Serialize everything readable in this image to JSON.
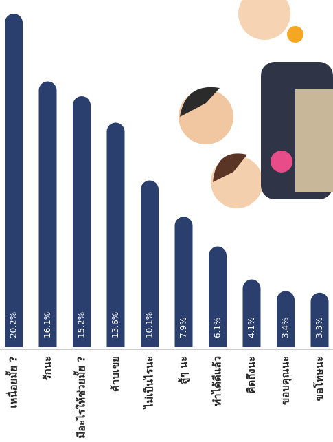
{
  "chart_data": {
    "type": "bar",
    "categories": [
      "เหนื่อยมั้ย ?",
      "รักนะ",
      "มีอะไรให้ช่วยมั้ย ?",
      "ค้าบเขย",
      "ไม่เป็นไรนะ",
      "สู้ๆ นะ",
      "ทำได้ดีแล้ว",
      "คิดถึงนะ",
      "ขอบคุณนะ",
      "ขอโทษนะ"
    ],
    "values": [
      20.2,
      16.1,
      15.2,
      13.6,
      10.1,
      7.9,
      6.1,
      4.1,
      3.4,
      3.3
    ],
    "value_labels": [
      "20.2%",
      "16.1%",
      "15.2%",
      "13.6%",
      "10.1%",
      "7.9%",
      "6.1%",
      "4.1%",
      "3.4%",
      "3.3%"
    ],
    "color": "#2b3f6e"
  }
}
